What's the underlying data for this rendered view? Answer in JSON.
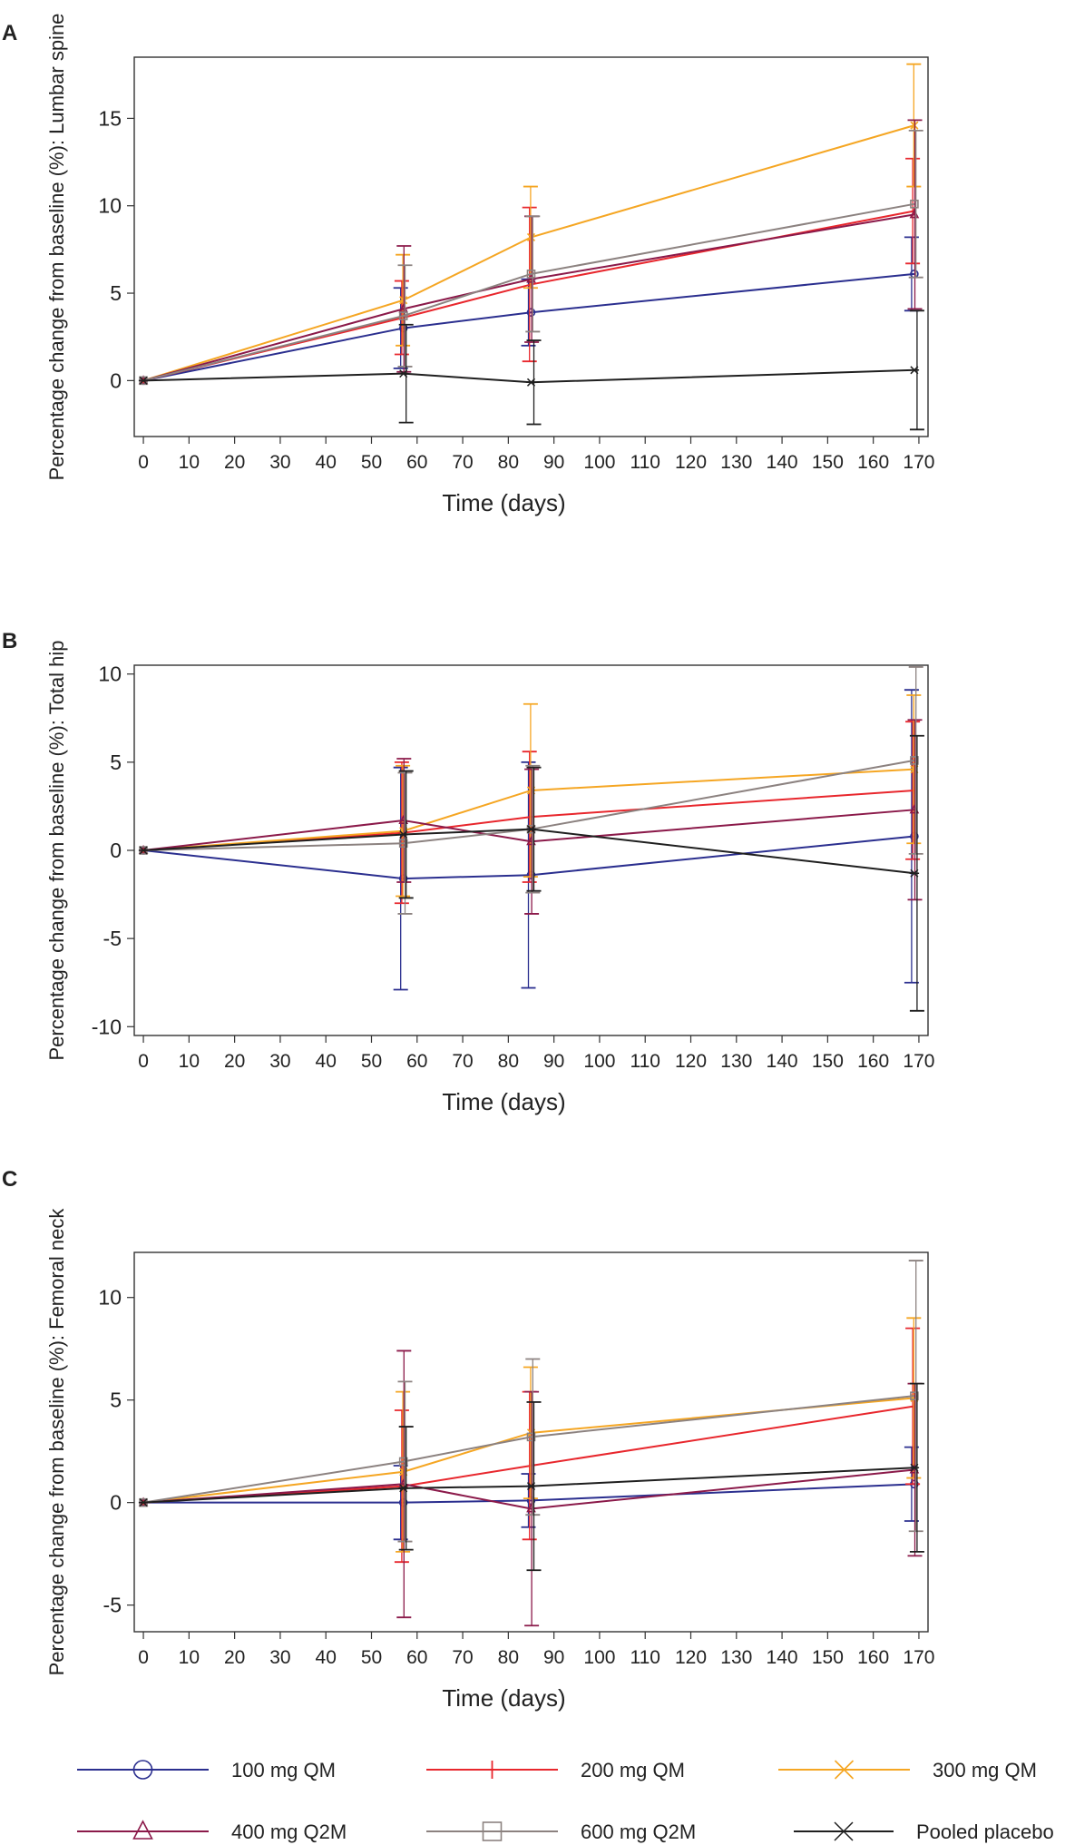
{
  "legend": [
    {
      "name": "100 mg QM",
      "color": "#2b2f8f",
      "marker": "circle"
    },
    {
      "name": "200 mg QM",
      "color": "#e8272d",
      "marker": "bar"
    },
    {
      "name": "300 mg QM",
      "color": "#f5a623",
      "marker": "x"
    },
    {
      "name": "400 mg Q2M",
      "color": "#8b1a4a",
      "marker": "triangle"
    },
    {
      "name": "600 mg Q2M",
      "color": "#8c8280",
      "marker": "square"
    },
    {
      "name": "Pooled placebo",
      "color": "#1f1f1f",
      "marker": "star"
    }
  ],
  "chart_data": [
    {
      "panel": "A",
      "type": "line",
      "xlabel": "Time (days)",
      "ylabel": "Percentage change from baseline (%): Lumbar spine",
      "xlim": [
        -2,
        172
      ],
      "ylim": [
        -3.2,
        18.5
      ],
      "xticks": [
        0,
        10,
        20,
        30,
        40,
        50,
        60,
        70,
        80,
        90,
        100,
        110,
        120,
        130,
        140,
        150,
        160,
        170
      ],
      "xtick_labels": [
        "0",
        "10",
        "20",
        "30",
        "40",
        "50",
        "60",
        "70",
        "80",
        "90",
        "100",
        "110",
        "120",
        "130",
        "140",
        "150",
        "160",
        "170"
      ],
      "yticks": [
        0,
        5,
        10,
        15
      ],
      "ytick_labels": [
        "0",
        "5",
        "10",
        "15"
      ],
      "series": [
        {
          "name": "100 mg QM",
          "x": [
            0,
            57,
            85,
            169
          ],
          "y": [
            0,
            3.0,
            3.9,
            6.1
          ],
          "err": [
            0,
            2.3,
            1.9,
            2.1
          ]
        },
        {
          "name": "200 mg QM",
          "x": [
            0,
            57,
            85,
            169
          ],
          "y": [
            0,
            3.6,
            5.5,
            9.7
          ],
          "err": [
            0,
            2.1,
            4.4,
            3.0
          ]
        },
        {
          "name": "300 mg QM",
          "x": [
            0,
            57,
            85,
            169
          ],
          "y": [
            0,
            4.6,
            8.2,
            14.6
          ],
          "err": [
            0,
            2.6,
            2.9,
            3.5
          ]
        },
        {
          "name": "400 mg Q2M",
          "x": [
            0,
            57,
            85,
            169
          ],
          "y": [
            0,
            4.1,
            5.8,
            9.5
          ],
          "err": [
            0,
            3.6,
            3.6,
            5.4
          ]
        },
        {
          "name": "600 mg Q2M",
          "x": [
            0,
            57,
            85,
            169
          ],
          "y": [
            0,
            3.7,
            6.1,
            10.1
          ],
          "err": [
            0,
            2.9,
            3.3,
            4.2
          ]
        },
        {
          "name": "Pooled placebo",
          "x": [
            0,
            57,
            85,
            169
          ],
          "y": [
            0,
            0.4,
            -0.1,
            0.6
          ],
          "err": [
            0,
            2.8,
            2.4,
            3.4
          ]
        }
      ]
    },
    {
      "panel": "B",
      "type": "line",
      "xlabel": "Time (days)",
      "ylabel": "Percentage change from baseline (%): Total hip",
      "xlim": [
        -2,
        172
      ],
      "ylim": [
        -10.5,
        10.5
      ],
      "xticks": [
        0,
        10,
        20,
        30,
        40,
        50,
        60,
        70,
        80,
        90,
        100,
        110,
        120,
        130,
        140,
        150,
        160,
        170
      ],
      "xtick_labels": [
        "0",
        "10",
        "20",
        "30",
        "40",
        "50",
        "60",
        "70",
        "80",
        "90",
        "100",
        "110",
        "120",
        "130",
        "140",
        "150",
        "160",
        "170"
      ],
      "yticks": [
        -10,
        -5,
        0,
        5,
        10
      ],
      "ytick_labels": [
        "-10",
        "-5",
        "0",
        "5",
        "10"
      ],
      "series": [
        {
          "name": "100 mg QM",
          "x": [
            0,
            57,
            85,
            169
          ],
          "y": [
            0,
            -1.6,
            -1.4,
            0.8
          ],
          "err": [
            0,
            6.3,
            6.4,
            8.3
          ]
        },
        {
          "name": "200 mg QM",
          "x": [
            0,
            57,
            85,
            169
          ],
          "y": [
            0,
            1.0,
            1.9,
            3.4
          ],
          "err": [
            0,
            4.0,
            3.7,
            3.9
          ]
        },
        {
          "name": "300 mg QM",
          "x": [
            0,
            57,
            85,
            169
          ],
          "y": [
            0,
            1.1,
            3.4,
            4.6
          ],
          "err": [
            0,
            3.7,
            4.9,
            4.2
          ]
        },
        {
          "name": "400 mg Q2M",
          "x": [
            0,
            57,
            85,
            169
          ],
          "y": [
            0,
            1.7,
            0.5,
            2.3
          ],
          "err": [
            0,
            3.5,
            4.1,
            5.1
          ]
        },
        {
          "name": "600 mg Q2M",
          "x": [
            0,
            57,
            85,
            169
          ],
          "y": [
            0,
            0.4,
            1.2,
            5.1
          ],
          "err": [
            0,
            4.0,
            3.6,
            5.3
          ]
        },
        {
          "name": "Pooled placebo",
          "x": [
            0,
            57,
            85,
            169
          ],
          "y": [
            0,
            0.9,
            1.2,
            -1.3
          ],
          "err": [
            0,
            3.6,
            3.5,
            7.8
          ]
        }
      ]
    },
    {
      "panel": "C",
      "type": "line",
      "xlabel": "Time (days)",
      "ylabel": "Percentage change from baseline (%): Femoral neck",
      "xlim": [
        -2,
        172
      ],
      "ylim": [
        -6.3,
        12.2
      ],
      "xticks": [
        0,
        10,
        20,
        30,
        40,
        50,
        60,
        70,
        80,
        90,
        100,
        110,
        120,
        130,
        140,
        150,
        160,
        170
      ],
      "xtick_labels": [
        "0",
        "10",
        "20",
        "30",
        "40",
        "50",
        "60",
        "70",
        "80",
        "90",
        "100",
        "110",
        "120",
        "130",
        "140",
        "150",
        "160",
        "170"
      ],
      "yticks": [
        -5,
        0,
        5,
        10
      ],
      "ytick_labels": [
        "-5",
        "0",
        "5",
        "10"
      ],
      "series": [
        {
          "name": "100 mg QM",
          "x": [
            0,
            57,
            85,
            169
          ],
          "y": [
            0,
            0.0,
            0.1,
            0.9
          ],
          "err": [
            0,
            1.8,
            1.3,
            1.8
          ]
        },
        {
          "name": "200 mg QM",
          "x": [
            0,
            57,
            85,
            169
          ],
          "y": [
            0,
            0.8,
            1.8,
            4.7
          ],
          "err": [
            0,
            3.7,
            3.6,
            3.8
          ]
        },
        {
          "name": "300 mg QM",
          "x": [
            0,
            57,
            85,
            169
          ],
          "y": [
            0,
            1.5,
            3.4,
            5.1
          ],
          "err": [
            0,
            3.9,
            3.2,
            3.9
          ]
        },
        {
          "name": "400 mg Q2M",
          "x": [
            0,
            57,
            85,
            169
          ],
          "y": [
            0,
            0.9,
            -0.3,
            1.6
          ],
          "err": [
            0,
            6.5,
            5.7,
            4.2
          ]
        },
        {
          "name": "600 mg Q2M",
          "x": [
            0,
            57,
            85,
            169
          ],
          "y": [
            0,
            2.0,
            3.2,
            5.2
          ],
          "err": [
            0,
            3.9,
            3.8,
            6.6
          ]
        },
        {
          "name": "Pooled placebo",
          "x": [
            0,
            57,
            85,
            169
          ],
          "y": [
            0,
            0.7,
            0.8,
            1.7
          ],
          "err": [
            0,
            3.0,
            4.1,
            4.1
          ]
        }
      ]
    }
  ]
}
